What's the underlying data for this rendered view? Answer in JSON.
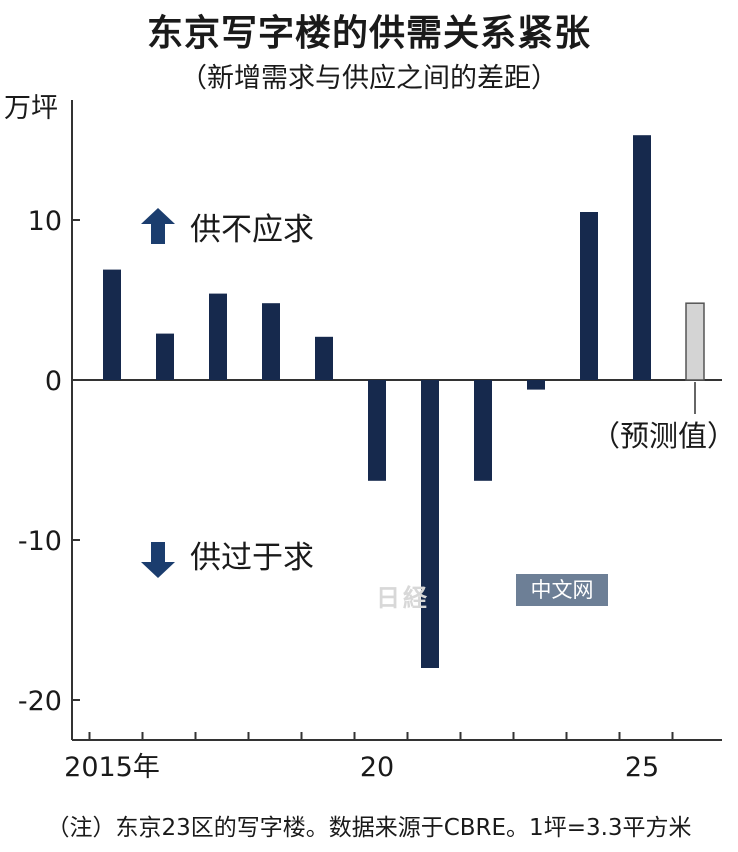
{
  "title": "东京写字楼的供需关系紧张",
  "subtitle": "（新增需求与供应之间的差距）",
  "unit": "万坪",
  "annotations": {
    "up": "供不应求",
    "down": "供过于求",
    "forecast": "（预测值）"
  },
  "note": "（注）东京23区的写字楼。数据来源于CBRE。1坪=3.3平方米",
  "watermark": {
    "logo": "日経",
    "text": "中文网"
  },
  "colors": {
    "bar": "#16294d",
    "forecast": "#d4d4d4",
    "axis": "#333333",
    "arrow": "#1b3d6e"
  },
  "chart_data": {
    "type": "bar",
    "categories": [
      "2015",
      "2016",
      "2017",
      "2018",
      "2019",
      "2020",
      "2021",
      "2022",
      "2023",
      "2024",
      "2025",
      "2026"
    ],
    "values": [
      6.9,
      2.9,
      5.4,
      4.8,
      2.7,
      -6.3,
      -18.0,
      -6.3,
      -0.6,
      10.5,
      15.3,
      4.8
    ],
    "forecast": [
      false,
      false,
      false,
      false,
      false,
      false,
      false,
      false,
      false,
      false,
      false,
      true
    ],
    "x_tick_labels": [
      {
        "index": 0,
        "label": "2015年"
      },
      {
        "index": 5,
        "label": "20"
      },
      {
        "index": 10,
        "label": "25"
      }
    ],
    "y_ticks": [
      {
        "value": 10,
        "label": "10"
      },
      {
        "value": 0,
        "label": "0"
      },
      {
        "value": -10,
        "label": "-10"
      },
      {
        "value": -20,
        "label": "-20"
      }
    ],
    "ylim": [
      -22.5,
      17.5
    ],
    "grid": false
  }
}
